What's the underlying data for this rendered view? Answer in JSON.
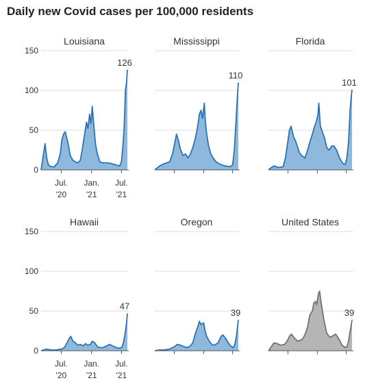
{
  "title": "Daily new Covid cases per 100,000 residents",
  "colors": {
    "state_fill": "#8fb9dc",
    "state_line": "#2b73b3",
    "us_fill": "#b5b5b5",
    "us_line": "#727272",
    "grid": "#dddddd",
    "axis": "#555555",
    "text": "#333333"
  },
  "chart_data": [
    {
      "type": "area",
      "title": "Louisiana",
      "ylim": [
        0,
        150
      ],
      "yticks": [
        0,
        50,
        100,
        150
      ],
      "xticks": [
        "Jul. '20",
        "Jan. '21",
        "Jul. '21"
      ],
      "end_label": "126",
      "series": [
        {
          "x": [
            "2020-03-01",
            "2020-03-25",
            "2020-04-04",
            "2020-04-15",
            "2020-05-01",
            "2020-05-20",
            "2020-06-10",
            "2020-06-25",
            "2020-07-05",
            "2020-07-15",
            "2020-07-25",
            "2020-08-10",
            "2020-08-25",
            "2020-09-10",
            "2020-09-25",
            "2020-10-10",
            "2020-10-25",
            "2020-11-05",
            "2020-11-20",
            "2020-12-01",
            "2020-12-10",
            "2020-12-20",
            "2020-12-28",
            "2021-01-05",
            "2021-01-10",
            "2021-01-18",
            "2021-01-25",
            "2021-02-05",
            "2021-02-20",
            "2021-03-10",
            "2021-04-01",
            "2021-05-01",
            "2021-06-01",
            "2021-06-20",
            "2021-07-01",
            "2021-07-10",
            "2021-07-18",
            "2021-07-25",
            "2021-08-01",
            "2021-08-06"
          ],
          "y": [
            0,
            33,
            15,
            6,
            4,
            4,
            9,
            20,
            38,
            45,
            48,
            35,
            18,
            12,
            10,
            9,
            12,
            25,
            45,
            60,
            52,
            70,
            58,
            80,
            67,
            48,
            32,
            20,
            10,
            9,
            9,
            8,
            6,
            5,
            10,
            30,
            55,
            100,
            110,
            126
          ]
        }
      ]
    },
    {
      "type": "area",
      "title": "Mississippi",
      "ylim": [
        0,
        150
      ],
      "yticks": [
        0,
        50,
        100,
        150
      ],
      "xticks": [
        "Jul. '20",
        "Jan. '21",
        "Jul. '21"
      ],
      "end_label": "110",
      "series": [
        {
          "x": [
            "2020-03-01",
            "2020-04-01",
            "2020-05-01",
            "2020-06-01",
            "2020-06-20",
            "2020-07-05",
            "2020-07-15",
            "2020-07-25",
            "2020-08-10",
            "2020-08-25",
            "2020-09-10",
            "2020-09-25",
            "2020-10-10",
            "2020-10-25",
            "2020-11-10",
            "2020-11-25",
            "2020-12-05",
            "2020-12-15",
            "2020-12-25",
            "2021-01-05",
            "2021-01-12",
            "2021-01-20",
            "2021-02-01",
            "2021-02-15",
            "2021-03-01",
            "2021-03-20",
            "2021-04-15",
            "2021-05-15",
            "2021-06-15",
            "2021-07-01",
            "2021-07-12",
            "2021-07-22",
            "2021-08-01",
            "2021-08-06"
          ],
          "y": [
            0,
            5,
            8,
            10,
            20,
            35,
            45,
            38,
            25,
            18,
            20,
            15,
            20,
            28,
            40,
            55,
            70,
            75,
            65,
            84,
            60,
            45,
            30,
            20,
            15,
            10,
            7,
            5,
            4,
            6,
            25,
            60,
            95,
            110
          ]
        }
      ]
    },
    {
      "type": "area",
      "title": "Florida",
      "ylim": [
        0,
        150
      ],
      "yticks": [
        0,
        50,
        100,
        150
      ],
      "xticks": [
        "Jul. '20",
        "Jan. '21",
        "Jul. '21"
      ],
      "end_label": "101",
      "series": [
        {
          "x": [
            "2020-03-01",
            "2020-03-20",
            "2020-04-05",
            "2020-05-01",
            "2020-06-01",
            "2020-06-15",
            "2020-06-30",
            "2020-07-10",
            "2020-07-20",
            "2020-08-05",
            "2020-08-20",
            "2020-09-10",
            "2020-09-25",
            "2020-10-15",
            "2020-11-01",
            "2020-11-15",
            "2020-12-01",
            "2020-12-15",
            "2020-12-25",
            "2021-01-05",
            "2021-01-10",
            "2021-01-20",
            "2021-02-01",
            "2021-02-15",
            "2021-03-01",
            "2021-03-15",
            "2021-04-01",
            "2021-04-15",
            "2021-05-01",
            "2021-05-20",
            "2021-06-10",
            "2021-06-25",
            "2021-07-05",
            "2021-07-15",
            "2021-07-25",
            "2021-08-01",
            "2021-08-06"
          ],
          "y": [
            0,
            3,
            5,
            3,
            4,
            15,
            35,
            50,
            55,
            42,
            35,
            22,
            18,
            15,
            25,
            35,
            45,
            55,
            60,
            70,
            84,
            55,
            48,
            40,
            28,
            25,
            30,
            30,
            25,
            15,
            8,
            7,
            15,
            35,
            75,
            92,
            101
          ]
        }
      ]
    },
    {
      "type": "area",
      "title": "Hawaii",
      "ylim": [
        0,
        150
      ],
      "yticks": [
        0,
        50,
        100,
        150
      ],
      "xticks": [
        "Jul. '20",
        "Jan. '21",
        "Jul. '21"
      ],
      "end_label": "47",
      "series": [
        {
          "x": [
            "2020-03-01",
            "2020-04-01",
            "2020-05-01",
            "2020-06-01",
            "2020-07-01",
            "2020-07-20",
            "2020-08-05",
            "2020-08-20",
            "2020-08-28",
            "2020-09-10",
            "2020-09-25",
            "2020-10-10",
            "2020-10-25",
            "2020-11-10",
            "2020-11-25",
            "2020-12-10",
            "2020-12-25",
            "2021-01-05",
            "2021-01-20",
            "2021-02-05",
            "2021-02-20",
            "2021-03-10",
            "2021-04-01",
            "2021-04-20",
            "2021-05-10",
            "2021-06-01",
            "2021-06-20",
            "2021-07-05",
            "2021-07-15",
            "2021-07-25",
            "2021-08-01",
            "2021-08-06"
          ],
          "y": [
            0,
            2,
            1,
            1,
            2,
            4,
            10,
            16,
            18,
            12,
            10,
            7,
            8,
            6,
            9,
            7,
            8,
            12,
            10,
            5,
            4,
            4,
            6,
            8,
            6,
            4,
            3,
            5,
            12,
            24,
            35,
            47
          ]
        }
      ]
    },
    {
      "type": "area",
      "title": "Oregon",
      "ylim": [
        0,
        150
      ],
      "yticks": [
        0,
        50,
        100,
        150
      ],
      "xticks": [
        "Jul. '20",
        "Jan. '21",
        "Jul. '21"
      ],
      "end_label": "39",
      "series": [
        {
          "x": [
            "2020-03-01",
            "2020-04-01",
            "2020-05-01",
            "2020-06-01",
            "2020-07-01",
            "2020-07-20",
            "2020-08-10",
            "2020-09-01",
            "2020-09-20",
            "2020-10-10",
            "2020-10-25",
            "2020-11-10",
            "2020-11-25",
            "2020-12-05",
            "2020-12-15",
            "2021-01-01",
            "2021-01-10",
            "2021-01-20",
            "2021-02-05",
            "2021-02-20",
            "2021-03-10",
            "2021-04-01",
            "2021-04-20",
            "2021-05-01",
            "2021-05-20",
            "2021-06-10",
            "2021-06-25",
            "2021-07-05",
            "2021-07-15",
            "2021-07-25",
            "2021-08-01",
            "2021-08-06"
          ],
          "y": [
            0,
            1,
            1,
            2,
            5,
            8,
            7,
            5,
            4,
            6,
            10,
            22,
            30,
            37,
            33,
            35,
            25,
            18,
            12,
            8,
            7,
            10,
            18,
            20,
            15,
            8,
            5,
            4,
            8,
            18,
            30,
            39
          ]
        }
      ]
    },
    {
      "type": "area",
      "title": "United States",
      "ylim": [
        0,
        150
      ],
      "yticks": [
        0,
        50,
        100,
        150
      ],
      "xticks": [
        "Jul. '20",
        "Jan. '21",
        "Jul. '21"
      ],
      "end_label": "39",
      "series": [
        {
          "x": [
            "2020-03-01",
            "2020-04-05",
            "2020-04-25",
            "2020-05-15",
            "2020-06-10",
            "2020-06-25",
            "2020-07-10",
            "2020-07-22",
            "2020-08-10",
            "2020-09-01",
            "2020-09-15",
            "2020-10-01",
            "2020-10-15",
            "2020-11-01",
            "2020-11-15",
            "2020-12-01",
            "2020-12-10",
            "2020-12-20",
            "2020-12-28",
            "2021-01-08",
            "2021-01-15",
            "2021-01-25",
            "2021-02-10",
            "2021-03-01",
            "2021-03-20",
            "2021-04-10",
            "2021-04-25",
            "2021-05-15",
            "2021-06-05",
            "2021-06-25",
            "2021-07-05",
            "2021-07-15",
            "2021-07-25",
            "2021-08-01",
            "2021-08-06"
          ],
          "y": [
            0,
            10,
            9,
            7,
            8,
            12,
            18,
            21,
            16,
            12,
            13,
            15,
            20,
            30,
            45,
            50,
            60,
            62,
            58,
            72,
            75,
            60,
            40,
            22,
            17,
            19,
            21,
            15,
            7,
            4,
            5,
            12,
            25,
            32,
            39
          ]
        }
      ]
    }
  ]
}
